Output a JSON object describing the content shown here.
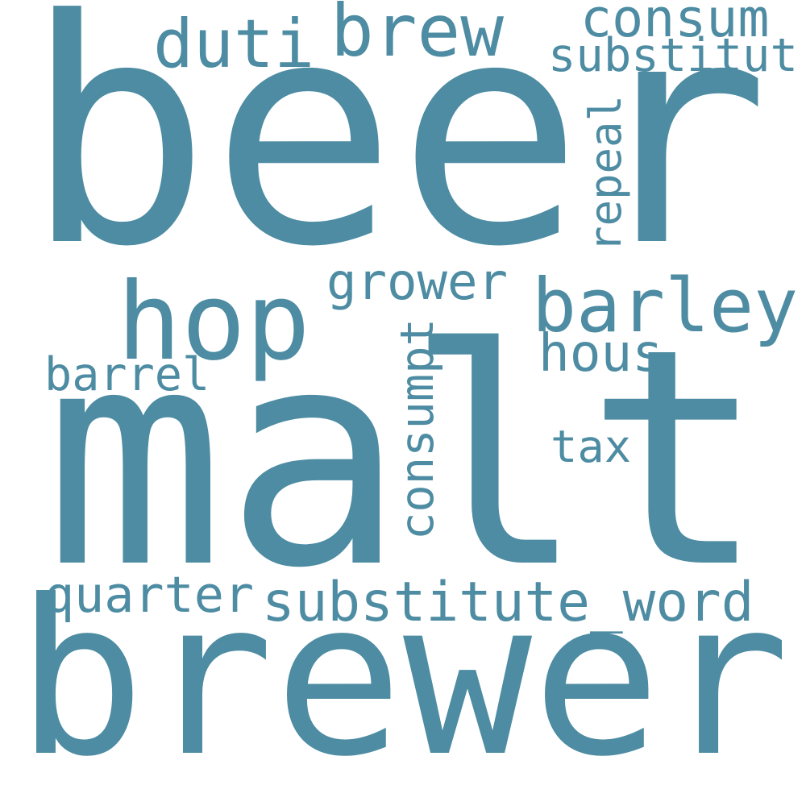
{
  "cloud": {
    "color": "#4d8ca2",
    "words": [
      {
        "id": "beer",
        "text": "beer"
      },
      {
        "id": "malt",
        "text": "malt"
      },
      {
        "id": "brewer",
        "text": "brewer"
      },
      {
        "id": "hop",
        "text": "hop"
      },
      {
        "id": "barley",
        "text": "barley"
      },
      {
        "id": "brew",
        "text": "brew"
      },
      {
        "id": "duti",
        "text": "duti"
      },
      {
        "id": "consum",
        "text": "consum"
      },
      {
        "id": "substitut",
        "text": "substitut"
      },
      {
        "id": "repeal",
        "text": "repeal"
      },
      {
        "id": "grower",
        "text": "grower"
      },
      {
        "id": "hous",
        "text": "hous"
      },
      {
        "id": "barrel",
        "text": "barrel"
      },
      {
        "id": "consumpt",
        "text": "consumpt"
      },
      {
        "id": "tax",
        "text": "tax"
      },
      {
        "id": "quarter",
        "text": "quarter"
      },
      {
        "id": "substitute_word",
        "text": "substitute_word"
      }
    ]
  }
}
